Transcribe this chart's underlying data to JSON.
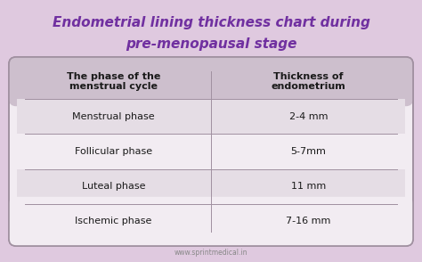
{
  "title_line1": "Endometrial lining thickness chart during",
  "title_line2": "pre-menopausal stage",
  "background_color": "#dfc9df",
  "table_bg_color": "#f2ecf2",
  "header_bg_color": "#cdbfcd",
  "row_bg_alt": "#e5dde5",
  "row_bg_main": "#f2ecf2",
  "header_col1": "The phase of the\nmenstrual cycle",
  "header_col2": "Thickness of\nendometrium",
  "rows": [
    [
      "Menstrual phase",
      "2-4 mm"
    ],
    [
      "Follicular phase",
      "5-7mm"
    ],
    [
      "Luteal phase",
      "11 mm"
    ],
    [
      "Ischemic phase",
      "7-16 mm"
    ]
  ],
  "title_color": "#7030a0",
  "header_text_color": "#1a1a1a",
  "row_text_color": "#1a1a1a",
  "divider_color": "#a090a0",
  "footer_text": "www.sprintmedical.in",
  "footer_color": "#888888"
}
